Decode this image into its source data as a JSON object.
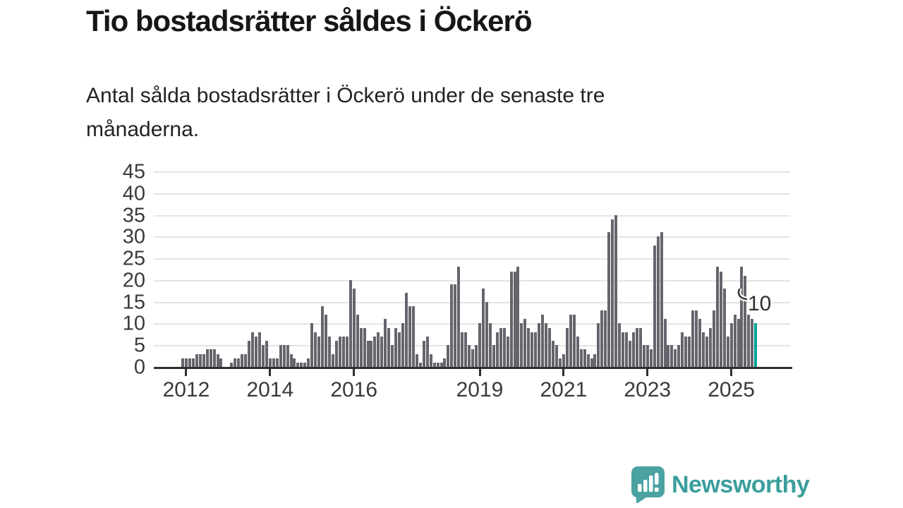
{
  "header": {
    "title": "Tio bostadsrätter såldes i Öckerö",
    "subtitle_line1": "Antal sålda bostadsrätter i Öckerö under de senaste tre",
    "subtitle_line2": "månaderna."
  },
  "chart_data": {
    "type": "bar",
    "title": "Tio bostadsrätter såldes i Öckerö",
    "description": "Antal sålda bostadsrätter i Öckerö under de senaste tre månaderna.",
    "start_month": "2011-12",
    "values": [
      2,
      2,
      2,
      2,
      3,
      3,
      3,
      4,
      4,
      4,
      3,
      2,
      0,
      0,
      1,
      2,
      2,
      3,
      3,
      6,
      8,
      7,
      8,
      5,
      6,
      2,
      2,
      2,
      5,
      5,
      5,
      3,
      2,
      1,
      1,
      1,
      2,
      10,
      8,
      7,
      14,
      12,
      7,
      3,
      6,
      7,
      7,
      7,
      20,
      18,
      12,
      9,
      9,
      6,
      6,
      7,
      8,
      7,
      11,
      9,
      5,
      9,
      8,
      10,
      17,
      14,
      14,
      3,
      1,
      6,
      7,
      3,
      1,
      1,
      1,
      2,
      5,
      19,
      19,
      23,
      8,
      8,
      5,
      4,
      5,
      10,
      18,
      15,
      10,
      5,
      8,
      9,
      9,
      7,
      22,
      22,
      23,
      10,
      11,
      9,
      8,
      8,
      10,
      12,
      10,
      9,
      6,
      5,
      2,
      3,
      9,
      12,
      12,
      7,
      4,
      4,
      3,
      2,
      3,
      10,
      13,
      13,
      31,
      34,
      35,
      10,
      8,
      8,
      6,
      8,
      9,
      9,
      5,
      5,
      4,
      28,
      30,
      31,
      11,
      5,
      5,
      4,
      5,
      8,
      7,
      7,
      13,
      13,
      11,
      8,
      7,
      9,
      13,
      23,
      22,
      18,
      7,
      10,
      12,
      11,
      23,
      21,
      12,
      11,
      10
    ],
    "ylim": [
      0,
      45
    ],
    "y_ticks": [
      0,
      5,
      10,
      15,
      20,
      25,
      30,
      35,
      40,
      45
    ],
    "x_ticks": [
      {
        "label": "2012",
        "month_index": 1
      },
      {
        "label": "2014",
        "month_index": 25
      },
      {
        "label": "2016",
        "month_index": 49
      },
      {
        "label": "2019",
        "month_index": 85
      },
      {
        "label": "2021",
        "month_index": 109
      },
      {
        "label": "2023",
        "month_index": 133
      },
      {
        "label": "2025",
        "month_index": 157
      }
    ],
    "grid": true,
    "legend": "none",
    "bar_color": "#65656d",
    "highlight_color": "#00a39c",
    "highlight_index": 164,
    "annotation": {
      "text": "10",
      "target": "last-bar"
    }
  },
  "logo": {
    "text": "Newsworthy",
    "color": "#3b9e9c",
    "icon": "speech-bubble-bar-chart"
  }
}
